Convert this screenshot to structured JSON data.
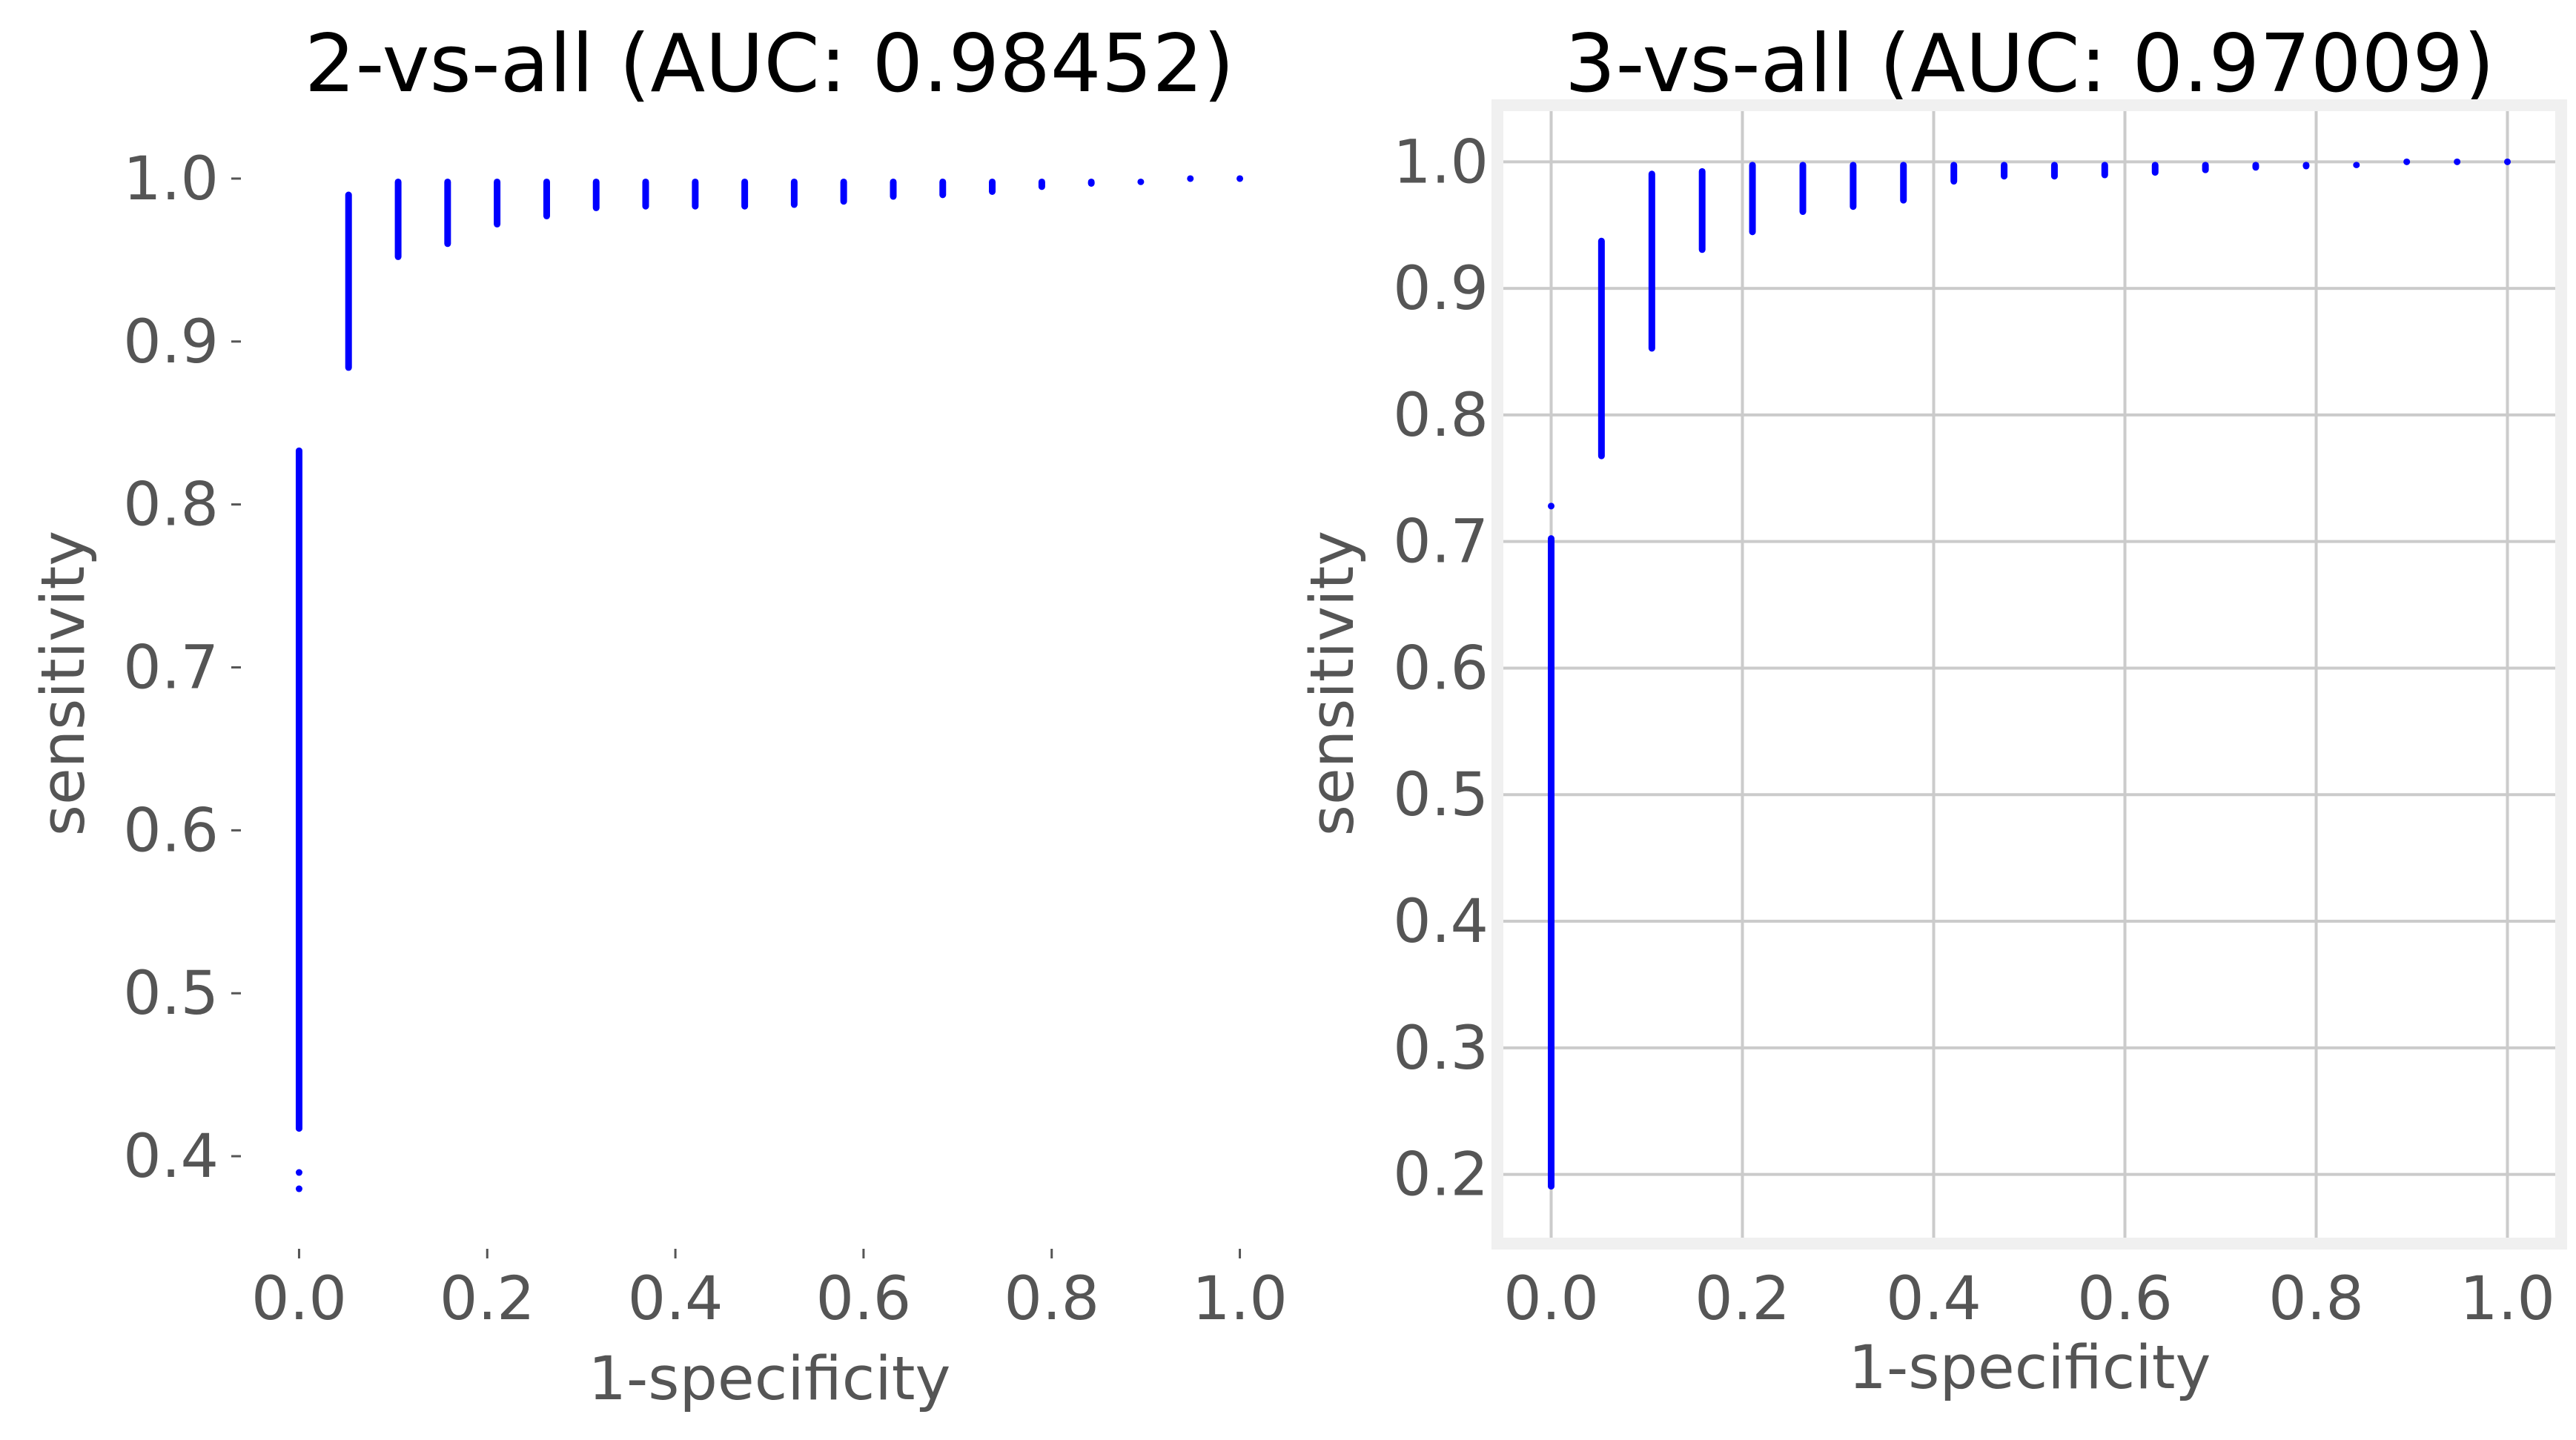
{
  "chart_data": [
    {
      "type": "scatter",
      "title": "2-vs-all (AUC: 0.98452)",
      "xlabel": "1-specificity",
      "ylabel": "sensitivity",
      "xlim": [
        -0.05,
        1.05
      ],
      "ylim": [
        0.35,
        1.03
      ],
      "xticks": [
        "0.0",
        "0.2",
        "0.4",
        "0.6",
        "0.8",
        "1.0"
      ],
      "yticks": [
        "0.4",
        "0.5",
        "0.6",
        "0.7",
        "0.8",
        "0.9",
        "1.0"
      ],
      "grid": false,
      "style_frame": false,
      "marker_color": "#0000ff",
      "columns": [
        {
          "x": 0.0,
          "y_min": 0.415,
          "y_max": 0.835,
          "outliers": [
            0.38,
            0.39
          ]
        },
        {
          "x": 0.0526,
          "y_min": 0.882,
          "y_max": 0.992
        },
        {
          "x": 0.1053,
          "y_min": 0.95,
          "y_max": 1.0
        },
        {
          "x": 0.1579,
          "y_min": 0.958,
          "y_max": 1.0
        },
        {
          "x": 0.2105,
          "y_min": 0.97,
          "y_max": 1.0
        },
        {
          "x": 0.2632,
          "y_min": 0.975,
          "y_max": 1.0
        },
        {
          "x": 0.3158,
          "y_min": 0.98,
          "y_max": 1.0
        },
        {
          "x": 0.3684,
          "y_min": 0.981,
          "y_max": 1.0
        },
        {
          "x": 0.4211,
          "y_min": 0.981,
          "y_max": 1.0
        },
        {
          "x": 0.4737,
          "y_min": 0.981,
          "y_max": 1.0
        },
        {
          "x": 0.5263,
          "y_min": 0.982,
          "y_max": 1.0
        },
        {
          "x": 0.5789,
          "y_min": 0.984,
          "y_max": 1.0
        },
        {
          "x": 0.6316,
          "y_min": 0.987,
          "y_max": 1.0
        },
        {
          "x": 0.6842,
          "y_min": 0.988,
          "y_max": 1.0
        },
        {
          "x": 0.7368,
          "y_min": 0.99,
          "y_max": 1.0
        },
        {
          "x": 0.7895,
          "y_min": 0.993,
          "y_max": 1.0
        },
        {
          "x": 0.8421,
          "y_min": 0.995,
          "y_max": 1.0
        },
        {
          "x": 0.8947,
          "y_min": 0.996,
          "y_max": 1.0
        },
        {
          "x": 0.9474,
          "y_min": 0.998,
          "y_max": 1.0
        },
        {
          "x": 1.0,
          "y_min": 1.0,
          "y_max": 1.0
        }
      ]
    },
    {
      "type": "scatter",
      "title": "3-vs-all (AUC: 0.97009)",
      "xlabel": "1-specificity",
      "ylabel": "sensitivity",
      "xlim": [
        -0.05,
        1.05
      ],
      "ylim": [
        0.15,
        1.04
      ],
      "xticks": [
        "0.0",
        "0.2",
        "0.4",
        "0.6",
        "0.8",
        "1.0"
      ],
      "yticks": [
        "0.2",
        "0.3",
        "0.4",
        "0.5",
        "0.6",
        "0.7",
        "0.8",
        "0.9",
        "1.0"
      ],
      "grid": true,
      "style_frame": true,
      "marker_color": "#0000ff",
      "columns": [
        {
          "x": 0.0,
          "y_min": 0.188,
          "y_max": 0.705,
          "outliers": [
            0.728
          ]
        },
        {
          "x": 0.0526,
          "y_min": 0.765,
          "y_max": 0.94
        },
        {
          "x": 0.1053,
          "y_min": 0.85,
          "y_max": 0.993
        },
        {
          "x": 0.1579,
          "y_min": 0.928,
          "y_max": 0.995
        },
        {
          "x": 0.2105,
          "y_min": 0.942,
          "y_max": 1.0
        },
        {
          "x": 0.2632,
          "y_min": 0.958,
          "y_max": 1.0
        },
        {
          "x": 0.3158,
          "y_min": 0.962,
          "y_max": 1.0
        },
        {
          "x": 0.3684,
          "y_min": 0.967,
          "y_max": 1.0
        },
        {
          "x": 0.4211,
          "y_min": 0.982,
          "y_max": 1.0
        },
        {
          "x": 0.4737,
          "y_min": 0.986,
          "y_max": 1.0
        },
        {
          "x": 0.5263,
          "y_min": 0.986,
          "y_max": 1.0
        },
        {
          "x": 0.5789,
          "y_min": 0.987,
          "y_max": 1.0
        },
        {
          "x": 0.6316,
          "y_min": 0.989,
          "y_max": 1.0
        },
        {
          "x": 0.6842,
          "y_min": 0.991,
          "y_max": 1.0
        },
        {
          "x": 0.7368,
          "y_min": 0.993,
          "y_max": 1.0
        },
        {
          "x": 0.7895,
          "y_min": 0.994,
          "y_max": 1.0
        },
        {
          "x": 0.8421,
          "y_min": 0.995,
          "y_max": 1.0
        },
        {
          "x": 0.8947,
          "y_min": 0.997,
          "y_max": 1.0
        },
        {
          "x": 0.9474,
          "y_min": 0.999,
          "y_max": 1.0
        },
        {
          "x": 1.0,
          "y_min": 1.0,
          "y_max": 1.0
        }
      ]
    }
  ]
}
